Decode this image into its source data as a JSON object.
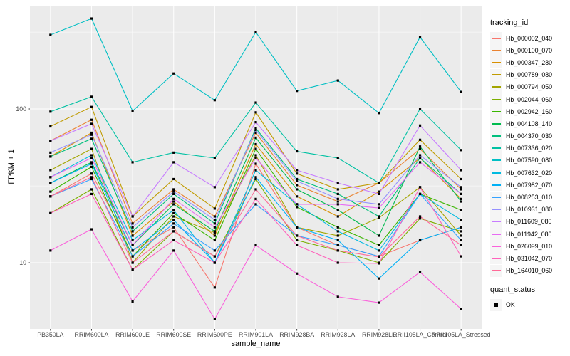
{
  "chart_data": {
    "type": "line",
    "title": "",
    "xlabel": "sample_name",
    "ylabel": "FPKM + 1",
    "yscale": "log10",
    "y_ticks": [
      10,
      100
    ],
    "y_tick_labels": [
      "10",
      "100"
    ],
    "y_minor_ticks": [
      31.6,
      316
    ],
    "ylim": [
      3.7,
      470
    ],
    "grid": true,
    "legend_position": "right",
    "panel_bg": "#EBEBEB",
    "grid_color": "#FFFFFF",
    "tick_label_color": "#4D4D4D",
    "marker": "black-square",
    "marker_color": "#000000",
    "categories": [
      "PB350LA",
      "RRIM600LA",
      "RRIM600LE",
      "RRIM600SE",
      "RRIM600PE",
      "RRIM901LA",
      "RRIM928BA",
      "RRIM928LA",
      "RRIM928LE",
      "RRII105LA_Control",
      "RRII105LA_Stressed"
    ],
    "legend_title": "tracking_id",
    "series": [
      {
        "name": "Hb_000002_040",
        "color": "#F8766D",
        "values": [
          27,
          38,
          12,
          17,
          6.9,
          44,
          17,
          13,
          11,
          14,
          17
        ]
      },
      {
        "name": "Hb_000100_070",
        "color": "#EA8331",
        "values": [
          62,
          85,
          18,
          30,
          20,
          70,
          32,
          25,
          33,
          55,
          30
        ]
      },
      {
        "name": "Hb_000347_280",
        "color": "#D89000",
        "values": [
          49,
          70,
          15,
          25,
          15,
          59,
          27,
          20,
          29,
          48,
          26
        ]
      },
      {
        "name": "Hb_000789_080",
        "color": "#C09B00",
        "values": [
          77,
          103,
          20,
          35,
          22.5,
          95,
          38,
          30,
          33,
          63,
          35
        ]
      },
      {
        "name": "Hb_000794_050",
        "color": "#A3A500",
        "values": [
          40,
          55,
          10,
          20,
          15.7,
          50,
          17,
          15,
          19.6,
          31,
          15
        ]
      },
      {
        "name": "Hb_002044_060",
        "color": "#7CAE00",
        "values": [
          21,
          30,
          9,
          16,
          11,
          35,
          14,
          12,
          10,
          19.4,
          16
        ]
      },
      {
        "name": "Hb_002942_160",
        "color": "#39B600",
        "values": [
          29,
          42,
          11,
          21,
          14,
          55,
          23,
          17,
          13,
          28,
          22
        ]
      },
      {
        "name": "Hb_004108_140",
        "color": "#00BB4E",
        "values": [
          33,
          45,
          13,
          24,
          16,
          65,
          30,
          22,
          15,
          57,
          25
        ]
      },
      {
        "name": "Hb_004370_030",
        "color": "#00BF7D",
        "values": [
          49,
          64,
          16,
          28,
          18,
          75,
          35,
          28,
          20,
          48,
          28
        ]
      },
      {
        "name": "Hb_007336_020",
        "color": "#00C1A3",
        "values": [
          96,
          120,
          45,
          52,
          48,
          110,
          53,
          48,
          33,
          100,
          54
        ]
      },
      {
        "name": "Hb_007590_080",
        "color": "#00BFC4",
        "values": [
          303,
          387,
          97,
          170,
          114,
          316,
          131,
          153,
          94,
          293,
          129
        ]
      },
      {
        "name": "Hb_007632_020",
        "color": "#00BAE0",
        "values": [
          36,
          50,
          14,
          22,
          10,
          40,
          24,
          16,
          12,
          28,
          19
        ]
      },
      {
        "name": "Hb_007982_070",
        "color": "#00B0F6",
        "values": [
          33,
          44,
          12,
          19,
          10,
          36,
          17,
          14,
          7.9,
          14,
          17
        ]
      },
      {
        "name": "Hb_008253_010",
        "color": "#35A2FF",
        "values": [
          27,
          35,
          11,
          18,
          12,
          24,
          15,
          13,
          11,
          28,
          14
        ]
      },
      {
        "name": "Hb_010931_080",
        "color": "#9590FF",
        "values": [
          52,
          68,
          17,
          29,
          19,
          73,
          34,
          26,
          24,
          50,
          31
        ]
      },
      {
        "name": "Hb_011609_080",
        "color": "#C77CFF",
        "values": [
          62,
          80,
          20,
          45,
          31,
          82,
          40,
          33,
          28,
          78,
          40
        ]
      },
      {
        "name": "Hb_011942_080",
        "color": "#E76BF3",
        "values": [
          36,
          48,
          13,
          26,
          17,
          48,
          24,
          24,
          22.7,
          45,
          28
        ]
      },
      {
        "name": "Hb_026099_010",
        "color": "#FA62DB",
        "values": [
          12,
          16.5,
          5.6,
          12,
          4.3,
          13,
          8.5,
          6,
          5.5,
          8.7,
          5
        ]
      },
      {
        "name": "Hb_031042_070",
        "color": "#FF62BC",
        "values": [
          21,
          28,
          9,
          14,
          10,
          26,
          13,
          10,
          9.9,
          31,
          11
        ]
      },
      {
        "name": "Hb_164010_060",
        "color": "#FF6A98",
        "values": [
          27,
          36,
          10,
          16,
          11,
          30,
          15,
          12,
          10.9,
          20,
          13
        ]
      }
    ],
    "quant_legend": {
      "title": "quant_status",
      "items": [
        {
          "label": "OK"
        }
      ]
    }
  }
}
